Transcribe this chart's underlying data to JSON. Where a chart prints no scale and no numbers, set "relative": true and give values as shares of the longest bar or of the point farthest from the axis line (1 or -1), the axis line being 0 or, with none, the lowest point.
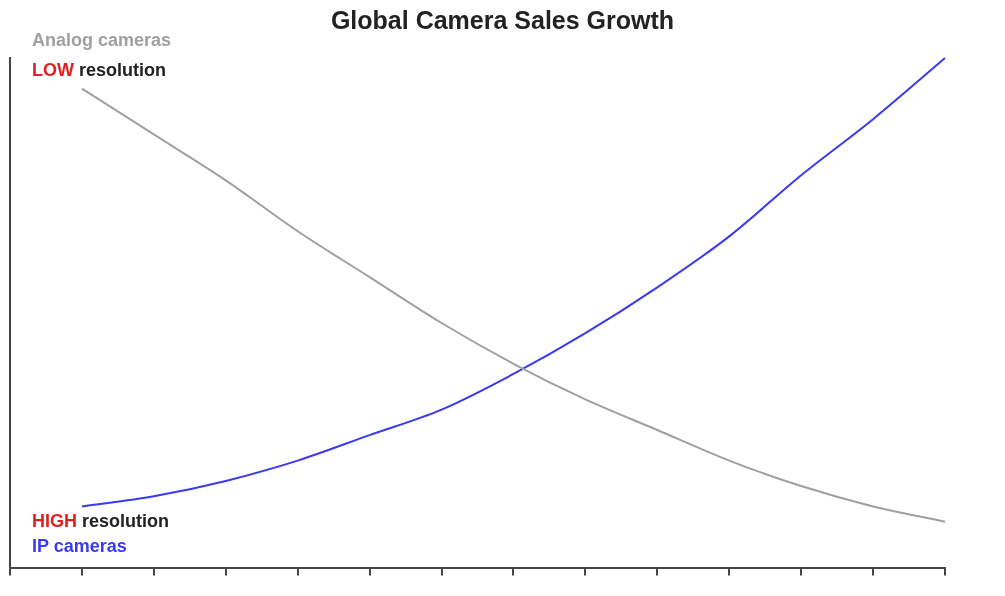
{
  "chart_data": {
    "type": "line",
    "title": "Global Camera Sales Growth",
    "relative": true,
    "categories": [
      null,
      null,
      null,
      null,
      null,
      null,
      null,
      null,
      null,
      null,
      null,
      null,
      null,
      null
    ],
    "series": [
      {
        "name": "Analog cameras",
        "color": "#a0a0a0",
        "values": [
          null,
          0.94,
          0.85,
          0.76,
          0.66,
          0.57,
          0.48,
          0.4,
          0.33,
          0.27,
          0.21,
          0.16,
          0.12,
          0.09
        ]
      },
      {
        "name": "IP cameras",
        "color": "#3a3af0",
        "values": [
          null,
          0.12,
          0.14,
          0.17,
          0.21,
          0.26,
          0.31,
          0.38,
          0.46,
          0.55,
          0.65,
          0.77,
          0.88,
          1
        ]
      }
    ],
    "annotations": [
      "LOW resolution",
      "HIGH resolution"
    ],
    "grid": false,
    "legend": false,
    "marker": "none",
    "line_style": "solid"
  }
}
